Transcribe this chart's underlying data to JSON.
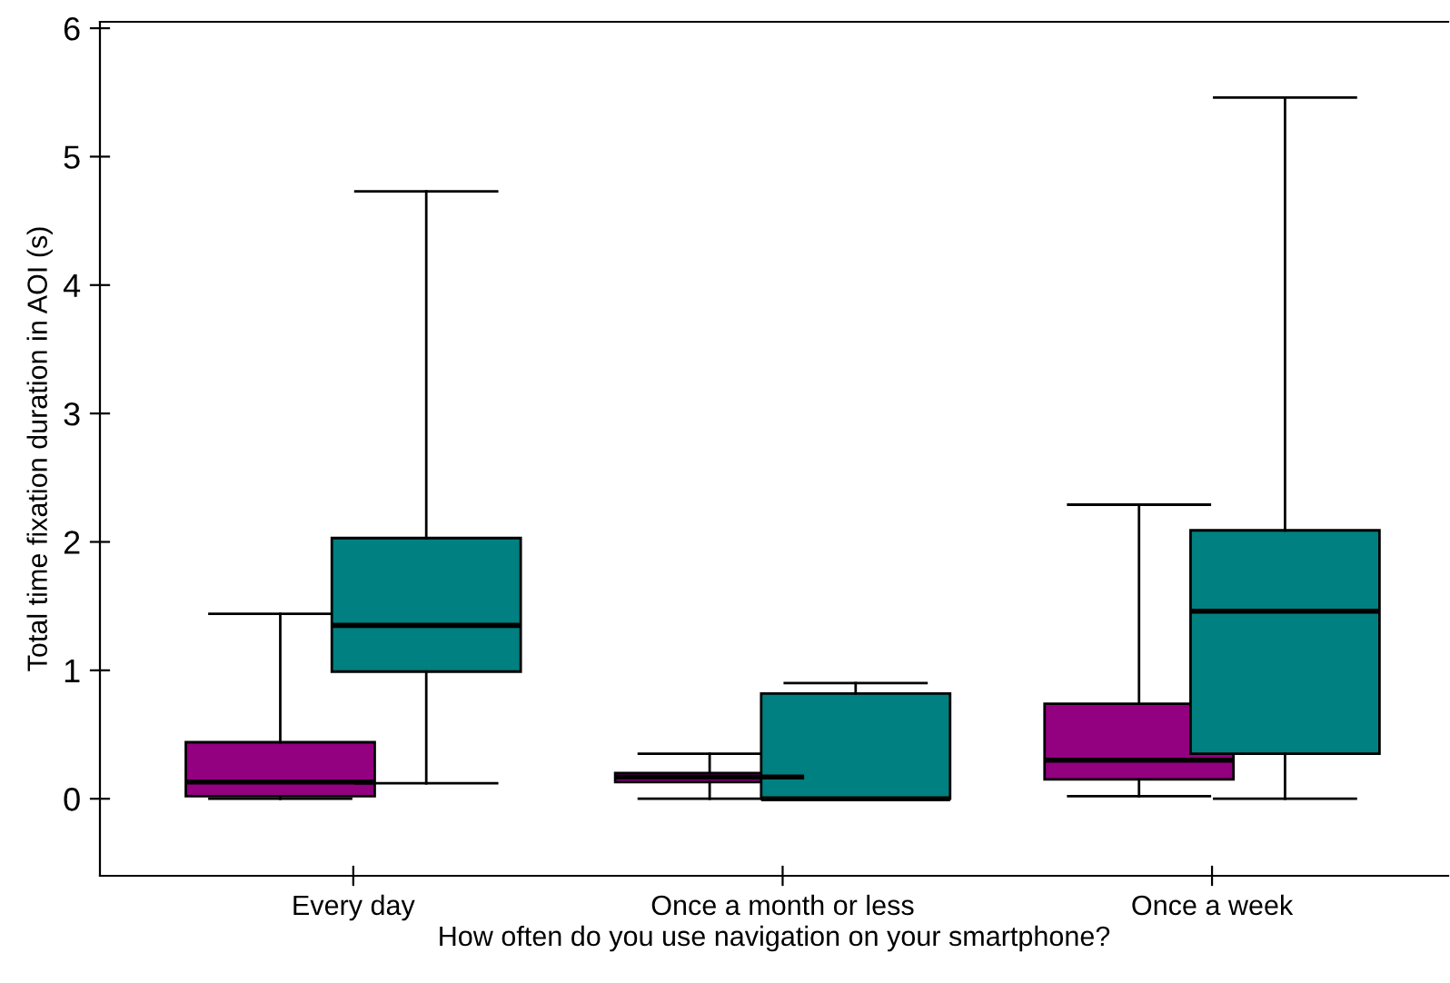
{
  "chart_data": {
    "type": "box",
    "xlabel": "How often do you use navigation on your smartphone?",
    "ylabel": "Total time fixation duration in AOI (s)",
    "categories": [
      "Every day",
      "Once a month or less",
      "Once a week"
    ],
    "ylim": [
      -0.6,
      6.05
    ],
    "yticks": [
      0,
      1,
      2,
      3,
      4,
      5,
      6
    ],
    "grid": false,
    "legend": false,
    "series": [
      {
        "color": "#930080",
        "boxes": [
          {
            "low": 0,
            "q1": 0.02,
            "median": 0.13,
            "q3": 0.44,
            "high": 1.44
          },
          {
            "low": 0,
            "q1": 0.13,
            "median": 0.17,
            "q3": 0.2,
            "high": 0.35
          },
          {
            "low": 0.02,
            "q1": 0.15,
            "median": 0.3,
            "q3": 0.74,
            "high": 2.29
          }
        ]
      },
      {
        "color": "#008080",
        "boxes": [
          {
            "low": 0.12,
            "q1": 0.99,
            "median": 1.35,
            "q3": 2.03,
            "high": 4.73
          },
          {
            "low": 0,
            "q1": 0,
            "median": 0,
            "q3": 0.82,
            "high": 0.9
          },
          {
            "low": 0,
            "q1": 0.35,
            "median": 1.46,
            "q3": 2.09,
            "high": 5.46
          }
        ]
      }
    ]
  }
}
